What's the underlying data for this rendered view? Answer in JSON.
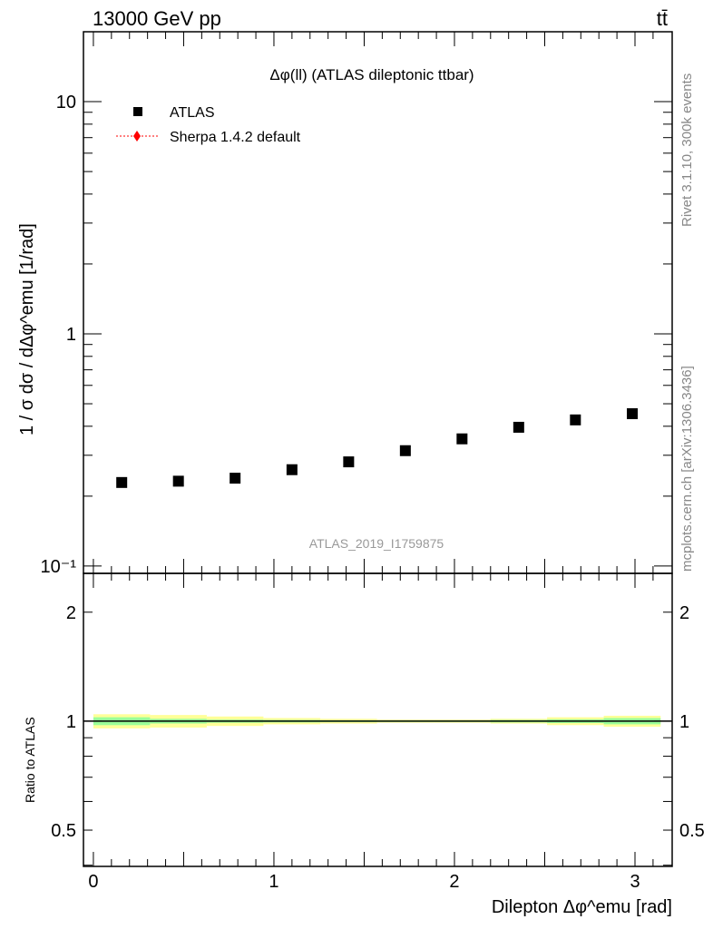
{
  "header": {
    "left": "13000 GeV pp",
    "right": "tt̄"
  },
  "side_labels": {
    "rivet": "Rivet 3.1.10,  300k events",
    "mcplots": "mcplots.cern.ch [arXiv:1306.3436]"
  },
  "chart_data": [
    {
      "type": "scatter",
      "title": "Δφ(ll) (ATLAS dileptonic ttbar)",
      "watermark": "ATLAS_2019_I1759875",
      "ylabel": "1 / σ  dσ / dΔφ^emu [1/rad]",
      "yscale": "log",
      "ylim": [
        0.093,
        20
      ],
      "xlim": [
        -0.055,
        3.206
      ],
      "ytick_labels": [
        {
          "v": 10,
          "t": "10"
        },
        {
          "v": 1,
          "t": "1"
        },
        {
          "v": 0.1,
          "t": "10⁻¹"
        }
      ],
      "legend": {
        "placement": "top-left",
        "entries": [
          "ATLAS",
          "Sherpa 1.4.2 default"
        ]
      },
      "series": [
        {
          "name": "ATLAS",
          "color": "#000000",
          "x": [
            0.157,
            0.471,
            0.785,
            1.1,
            1.414,
            1.728,
            2.042,
            2.356,
            2.67,
            2.985
          ],
          "y": [
            0.229,
            0.232,
            0.239,
            0.26,
            0.281,
            0.314,
            0.353,
            0.396,
            0.426,
            0.453
          ]
        },
        {
          "name": "Sherpa 1.4.2 default",
          "color": "#ff0000",
          "x": [],
          "y": []
        }
      ]
    },
    {
      "type": "area",
      "ylabel": "Ratio to ATLAS",
      "xlabel": "Dilepton Δφ^emu [rad]",
      "yscale": "log",
      "ylim": [
        0.397,
        2.56
      ],
      "xlim": [
        -0.055,
        3.206
      ],
      "ytick_labels": [
        {
          "v": 2,
          "t": "2"
        },
        {
          "v": 1,
          "t": "1"
        },
        {
          "v": 0.5,
          "t": "0.5"
        }
      ],
      "xtick_labels": [
        {
          "v": 0,
          "t": "0"
        },
        {
          "v": 1,
          "t": "1"
        },
        {
          "v": 2,
          "t": "2"
        },
        {
          "v": 3,
          "t": "3"
        }
      ],
      "bin_edges": [
        0,
        0.314,
        0.628,
        0.942,
        1.257,
        1.571,
        1.885,
        2.199,
        2.513,
        2.827,
        3.142
      ],
      "total_err": [
        0.045,
        0.04,
        0.03,
        0.02,
        0.015,
        0.01,
        0.01,
        0.015,
        0.025,
        0.035
      ],
      "stat_err": [
        0.025,
        0.015,
        0.01,
        0.008,
        0.006,
        0.005,
        0.005,
        0.008,
        0.012,
        0.02
      ],
      "band_colors": {
        "total": "#ffff99",
        "stat": "#99ff99"
      }
    }
  ]
}
